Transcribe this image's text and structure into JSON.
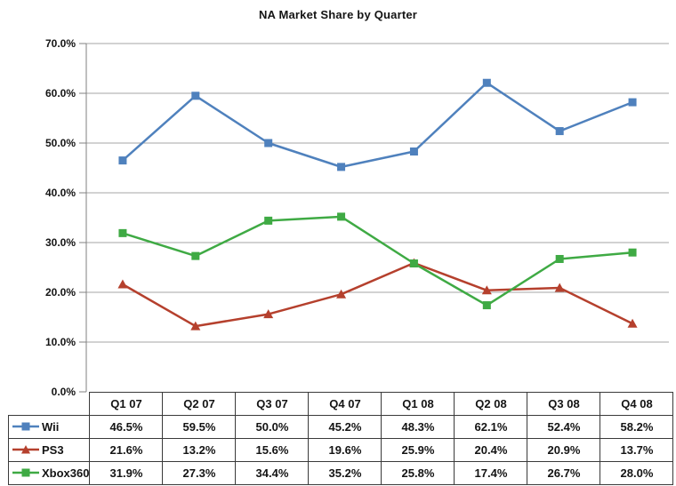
{
  "chart_data": {
    "type": "line",
    "title": "NA Market Share by Quarter",
    "categories": [
      "Q1 07",
      "Q2 07",
      "Q3 07",
      "Q4 07",
      "Q1 08",
      "Q2 08",
      "Q3 08",
      "Q4 08"
    ],
    "series": [
      {
        "name": "Wii",
        "marker": "square",
        "color": "#4F81BD",
        "values": [
          46.5,
          59.5,
          50.0,
          45.2,
          48.3,
          62.1,
          52.4,
          58.2
        ]
      },
      {
        "name": "PS3",
        "marker": "triangle",
        "color": "#B5402D",
        "values": [
          21.6,
          13.2,
          15.6,
          19.6,
          25.9,
          20.4,
          20.9,
          13.7
        ]
      },
      {
        "name": "Xbox360",
        "marker": "square",
        "color": "#3FAA44",
        "values": [
          31.9,
          27.3,
          34.4,
          35.2,
          25.8,
          17.4,
          26.7,
          28.0
        ]
      }
    ],
    "ylim": [
      0,
      70
    ],
    "ytick_step": 10,
    "ytick_labels": [
      "0.0%",
      "10.0%",
      "20.0%",
      "30.0%",
      "40.0%",
      "50.0%",
      "60.0%",
      "70.0%"
    ],
    "value_format": "one-decimal-percent",
    "grid": true,
    "legend_position": "data-table-left-column",
    "colors": {
      "gridline": "#A6A6A6",
      "axis": "#808080",
      "table_border": "#3A3A3A",
      "text": "#141414",
      "background": "#FFFFFF"
    }
  }
}
